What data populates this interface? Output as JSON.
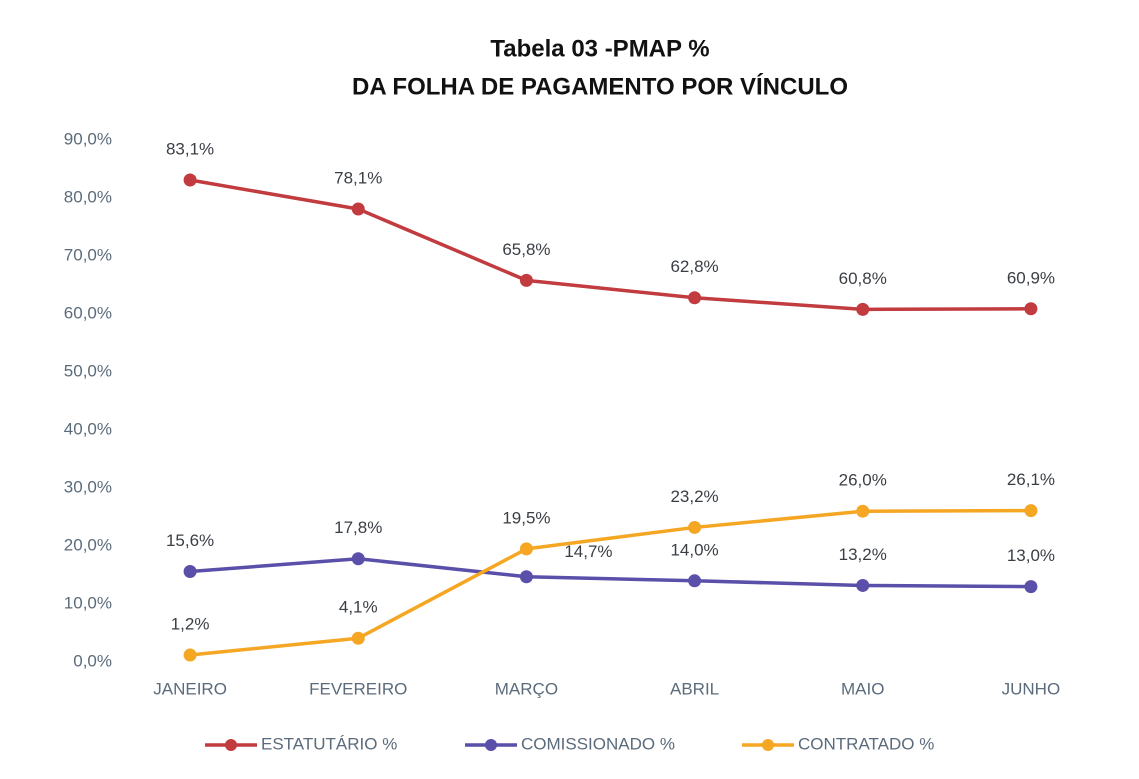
{
  "chart_data": {
    "type": "line",
    "title": "Tabela 03 -PMAP %",
    "subtitle": "DA FOLHA DE PAGAMENTO POR VÍNCULO",
    "categories": [
      "JANEIRO",
      "FEVEREIRO",
      "MARÇO",
      "ABRIL",
      "MAIO",
      "JUNHO"
    ],
    "series": [
      {
        "name": "ESTATUTÁRIO %",
        "color": "#c23b3f",
        "values": [
          83.1,
          78.1,
          65.8,
          62.8,
          60.8,
          60.9
        ],
        "value_labels": [
          "83,1%",
          "78,1%",
          "65,8%",
          "62,8%",
          "60,8%",
          "60,9%"
        ]
      },
      {
        "name": "COMISSIONADO %",
        "color": "#5a4fa9",
        "values": [
          15.6,
          17.8,
          14.7,
          14.0,
          13.2,
          13.0
        ],
        "value_labels": [
          "15,6%",
          "17,8%",
          "14,7%",
          "14,0%",
          "13,2%",
          "13,0%"
        ]
      },
      {
        "name": "CONTRATADO %",
        "color": "#f5a623",
        "values": [
          1.2,
          4.1,
          19.5,
          23.2,
          26.0,
          26.1
        ],
        "value_labels": [
          "1,2%",
          "4,1%",
          "19,5%",
          "23,2%",
          "26,0%",
          "26,1%"
        ]
      }
    ],
    "ylim": [
      0,
      90
    ],
    "yticks": [
      {
        "value": 0,
        "label": "0,0%"
      },
      {
        "value": 10,
        "label": "10,0%"
      },
      {
        "value": 20,
        "label": "20,0%"
      },
      {
        "value": 30,
        "label": "30,0%"
      },
      {
        "value": 40,
        "label": "40,0%"
      },
      {
        "value": 50,
        "label": "50,0%"
      },
      {
        "value": 60,
        "label": "60,0%"
      },
      {
        "value": 70,
        "label": "70,0%"
      },
      {
        "value": 80,
        "label": "80,0%"
      },
      {
        "value": 90,
        "label": "90,0%"
      }
    ],
    "grid": false,
    "legend": "bottom"
  }
}
